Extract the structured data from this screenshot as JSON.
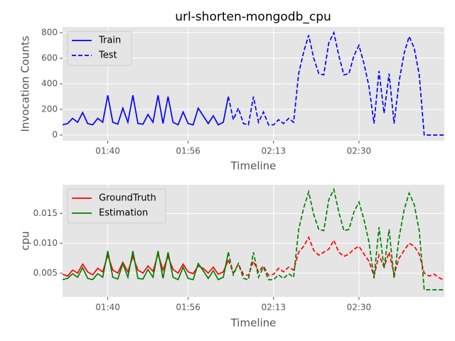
{
  "chart_data": [
    {
      "type": "line",
      "title": "url-shorten-mongodb_cpu",
      "x_label": "Timeline",
      "y_label": "Invocation Counts",
      "x": [
        "01:31",
        "01:32",
        "01:33",
        "01:34",
        "01:35",
        "01:36",
        "01:37",
        "01:38",
        "01:39",
        "01:40",
        "01:41",
        "01:42",
        "01:43",
        "01:44",
        "01:45",
        "01:46",
        "01:47",
        "01:48",
        "01:49",
        "01:50",
        "01:51",
        "01:52",
        "01:53",
        "01:54",
        "01:55",
        "01:56",
        "01:57",
        "01:58",
        "01:59",
        "02:00",
        "02:01",
        "02:02",
        "02:03",
        "02:04",
        "02:05",
        "02:06",
        "02:07",
        "02:08",
        "02:09",
        "02:10",
        "02:11",
        "02:12",
        "02:13",
        "02:14",
        "02:15",
        "02:16",
        "02:17",
        "02:18",
        "02:19",
        "02:20",
        "02:21",
        "02:22",
        "02:23",
        "02:24",
        "02:25",
        "02:26",
        "02:27",
        "02:28",
        "02:29",
        "02:30",
        "02:31",
        "02:32",
        "02:33",
        "02:34",
        "02:35",
        "02:36",
        "02:37",
        "02:38",
        "02:39",
        "02:40",
        "02:41",
        "02:42",
        "02:43",
        "02:44",
        "02:45",
        "02:46",
        "02:47"
      ],
      "series": [
        {
          "name": "Train",
          "color": "#0000ff",
          "dash": "solid",
          "values": [
            80,
            90,
            130,
            100,
            175,
            90,
            80,
            130,
            100,
            310,
            100,
            85,
            210,
            100,
            310,
            90,
            85,
            160,
            100,
            310,
            90,
            300,
            100,
            80,
            180,
            90,
            80,
            210,
            150,
            90,
            150,
            80,
            100,
            300,
            null,
            null,
            null,
            null,
            null,
            null,
            null,
            null,
            null,
            null,
            null,
            null,
            null,
            null,
            null,
            null,
            null,
            null,
            null,
            null,
            null,
            null,
            null,
            null,
            null,
            null,
            null,
            null,
            null,
            null,
            null,
            null,
            null,
            null,
            null,
            null,
            null,
            null,
            null,
            null,
            null,
            null,
            null
          ]
        },
        {
          "name": "Test",
          "color": "#0000ff",
          "dash": "dashed",
          "values": [
            null,
            null,
            null,
            null,
            null,
            null,
            null,
            null,
            null,
            null,
            null,
            null,
            null,
            null,
            null,
            null,
            null,
            null,
            null,
            null,
            null,
            null,
            null,
            null,
            null,
            null,
            null,
            null,
            null,
            null,
            null,
            null,
            null,
            300,
            120,
            210,
            90,
            80,
            300,
            100,
            180,
            80,
            80,
            120,
            90,
            130,
            100,
            480,
            650,
            780,
            600,
            480,
            470,
            720,
            800,
            620,
            470,
            480,
            620,
            700,
            560,
            380,
            90,
            500,
            170,
            480,
            90,
            420,
            640,
            770,
            680,
            470,
            0,
            0,
            0,
            0,
            0
          ]
        }
      ],
      "xlim": [
        "01:31",
        "02:47"
      ],
      "xticks": [
        "01:40",
        "01:56",
        "02:13",
        "02:30"
      ],
      "ylim": [
        -44,
        844
      ],
      "yticks": [
        0,
        200,
        400,
        600,
        800
      ],
      "grid": true,
      "legend": "upper-left"
    },
    {
      "type": "line",
      "x_label": "Timeline",
      "y_label": "cpu",
      "x": [
        "01:31",
        "01:32",
        "01:33",
        "01:34",
        "01:35",
        "01:36",
        "01:37",
        "01:38",
        "01:39",
        "01:40",
        "01:41",
        "01:42",
        "01:43",
        "01:44",
        "01:45",
        "01:46",
        "01:47",
        "01:48",
        "01:49",
        "01:50",
        "01:51",
        "01:52",
        "01:53",
        "01:54",
        "01:55",
        "01:56",
        "01:57",
        "01:58",
        "01:59",
        "02:00",
        "02:01",
        "02:02",
        "02:03",
        "02:04",
        "02:05",
        "02:06",
        "02:07",
        "02:08",
        "02:09",
        "02:10",
        "02:11",
        "02:12",
        "02:13",
        "02:14",
        "02:15",
        "02:16",
        "02:17",
        "02:18",
        "02:19",
        "02:20",
        "02:21",
        "02:22",
        "02:23",
        "02:24",
        "02:25",
        "02:26",
        "02:27",
        "02:28",
        "02:29",
        "02:30",
        "02:31",
        "02:32",
        "02:33",
        "02:34",
        "02:35",
        "02:36",
        "02:37",
        "02:38",
        "02:39",
        "02:40",
        "02:41",
        "02:42",
        "02:43",
        "02:44",
        "02:45",
        "02:46",
        "02:47"
      ],
      "dashed_from": "02:04",
      "series": [
        {
          "name": "GroundTruth",
          "color": "#ff0000",
          "values": [
            0.0048,
            0.0045,
            0.0055,
            0.005,
            0.0065,
            0.0052,
            0.0047,
            0.0058,
            0.0052,
            0.008,
            0.0055,
            0.005,
            0.0068,
            0.0052,
            0.0078,
            0.0055,
            0.005,
            0.0062,
            0.0053,
            0.0082,
            0.0055,
            0.0078,
            0.0056,
            0.005,
            0.0065,
            0.0052,
            0.0049,
            0.0062,
            0.0058,
            0.005,
            0.006,
            0.0048,
            0.0052,
            0.0072,
            0.005,
            0.0065,
            0.0048,
            0.0046,
            0.007,
            0.0052,
            0.0062,
            0.0046,
            0.0048,
            0.0058,
            0.0052,
            0.006,
            0.0055,
            0.0085,
            0.0095,
            0.011,
            0.0088,
            0.008,
            0.0085,
            0.009,
            0.0105,
            0.0085,
            0.0078,
            0.0082,
            0.009,
            0.0095,
            0.0082,
            0.007,
            0.0045,
            0.008,
            0.006,
            0.0085,
            0.0048,
            0.0075,
            0.0088,
            0.01,
            0.0095,
            0.0082,
            0.005,
            0.0045,
            0.0048,
            0.0042,
            0.0038
          ]
        },
        {
          "name": "Estimation",
          "color": "#008000",
          "values": [
            0.0039,
            0.0041,
            0.0049,
            0.0043,
            0.0059,
            0.0041,
            0.0039,
            0.0049,
            0.0043,
            0.0087,
            0.0043,
            0.004,
            0.0066,
            0.0043,
            0.0087,
            0.0041,
            0.004,
            0.0056,
            0.0043,
            0.0087,
            0.0041,
            0.0085,
            0.0043,
            0.0039,
            0.006,
            0.0041,
            0.0039,
            0.0066,
            0.0054,
            0.0041,
            0.0054,
            0.0039,
            0.0043,
            0.0085,
            0.0047,
            0.0066,
            0.0041,
            0.0039,
            0.0085,
            0.0043,
            0.006,
            0.0039,
            0.0039,
            0.0047,
            0.0041,
            0.0049,
            0.0043,
            0.0123,
            0.0159,
            0.0186,
            0.0148,
            0.0123,
            0.0121,
            0.0173,
            0.019,
            0.0152,
            0.0121,
            0.0123,
            0.0152,
            0.0169,
            0.014,
            0.0102,
            0.0041,
            0.0127,
            0.0058,
            0.0123,
            0.0041,
            0.011,
            0.0156,
            0.0184,
            0.0165,
            0.0121,
            0.0022,
            0.0022,
            0.0022,
            0.0022,
            0.0022
          ]
        }
      ],
      "xlim": [
        "01:31",
        "02:47"
      ],
      "xticks": [
        "01:40",
        "01:56",
        "02:13",
        "02:30"
      ],
      "ylim": [
        0.001,
        0.0198
      ],
      "yticks": [
        0.005,
        {
          "value": 0.01,
          "label": "0.010"
        },
        0.015
      ],
      "grid": true,
      "legend": "upper-left"
    }
  ]
}
